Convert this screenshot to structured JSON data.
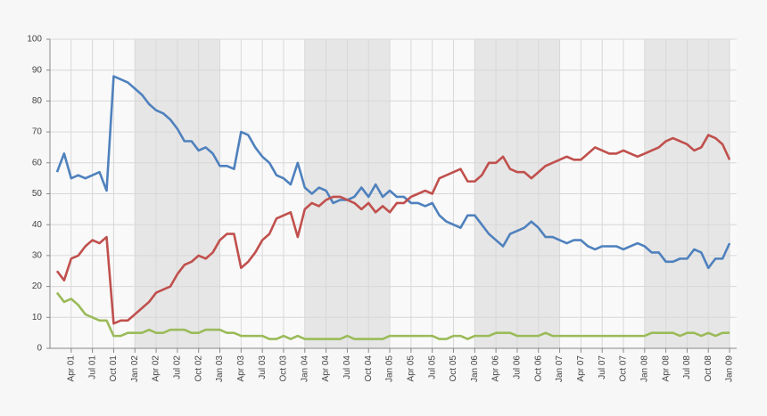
{
  "chart_data": {
    "type": "line",
    "x": [
      "2001-02",
      "2001-03",
      "2001-04",
      "2001-05",
      "2001-06",
      "2001-07",
      "2001-08",
      "2001-09",
      "2001-10",
      "2001-11",
      "2001-12",
      "2002-01",
      "2002-02",
      "2002-03",
      "2002-04",
      "2002-05",
      "2002-06",
      "2002-07",
      "2002-08",
      "2002-09",
      "2002-10",
      "2002-11",
      "2002-12",
      "2003-01",
      "2003-02",
      "2003-03",
      "2003-04",
      "2003-05",
      "2003-06",
      "2003-07",
      "2003-08",
      "2003-09",
      "2003-10",
      "2003-11",
      "2003-12",
      "2004-01",
      "2004-02",
      "2004-03",
      "2004-04",
      "2004-05",
      "2004-06",
      "2004-07",
      "2004-08",
      "2004-09",
      "2004-10",
      "2004-11",
      "2004-12",
      "2005-01",
      "2005-02",
      "2005-03",
      "2005-04",
      "2005-05",
      "2005-06",
      "2005-07",
      "2005-08",
      "2005-09",
      "2005-10",
      "2005-11",
      "2005-12",
      "2006-01",
      "2006-02",
      "2006-03",
      "2006-04",
      "2006-05",
      "2006-06",
      "2006-07",
      "2006-08",
      "2006-09",
      "2006-10",
      "2006-11",
      "2006-12",
      "2007-01",
      "2007-02",
      "2007-03",
      "2007-04",
      "2007-05",
      "2007-06",
      "2007-07",
      "2007-08",
      "2007-09",
      "2007-10",
      "2007-11",
      "2007-12",
      "2008-01",
      "2008-02",
      "2008-03",
      "2008-04",
      "2008-05",
      "2008-06",
      "2008-07",
      "2008-08",
      "2008-09",
      "2008-10",
      "2008-11",
      "2008-12",
      "2009-01"
    ],
    "series": [
      {
        "color": "#4f81bd",
        "values": [
          57,
          63,
          55,
          56,
          55,
          56,
          57,
          51,
          88,
          87,
          86,
          84,
          82,
          79,
          77,
          76,
          74,
          71,
          67,
          67,
          64,
          65,
          63,
          59,
          59,
          58,
          70,
          69,
          65,
          62,
          60,
          56,
          55,
          53,
          60,
          52,
          50,
          52,
          51,
          47,
          48,
          48,
          49,
          52,
          49,
          53,
          49,
          51,
          49,
          49,
          47,
          47,
          46,
          47,
          43,
          41,
          40,
          39,
          43,
          43,
          40,
          37,
          35,
          33,
          37,
          38,
          39,
          41,
          39,
          36,
          36,
          35,
          34,
          35,
          35,
          33,
          32,
          33,
          33,
          33,
          32,
          33,
          34,
          33,
          31,
          31,
          28,
          28,
          29,
          29,
          32,
          31,
          26,
          29,
          29,
          34
        ]
      },
      {
        "color": "#c0504d",
        "values": [
          25,
          22,
          29,
          30,
          33,
          35,
          34,
          36,
          8,
          9,
          9,
          11,
          13,
          15,
          18,
          19,
          20,
          24,
          27,
          28,
          30,
          29,
          31,
          35,
          37,
          37,
          26,
          28,
          31,
          35,
          37,
          42,
          43,
          44,
          36,
          45,
          47,
          46,
          48,
          49,
          49,
          48,
          47,
          45,
          47,
          44,
          46,
          44,
          47,
          47,
          49,
          50,
          51,
          50,
          55,
          56,
          57,
          58,
          54,
          54,
          56,
          60,
          60,
          62,
          58,
          57,
          57,
          55,
          57,
          59,
          60,
          61,
          62,
          61,
          61,
          63,
          65,
          64,
          63,
          63,
          64,
          63,
          62,
          63,
          64,
          65,
          67,
          68,
          67,
          66,
          64,
          65,
          69,
          68,
          66,
          61
        ]
      },
      {
        "color": "#9bbb59",
        "values": [
          18,
          15,
          16,
          14,
          11,
          10,
          9,
          9,
          4,
          4,
          5,
          5,
          5,
          6,
          5,
          5,
          6,
          6,
          6,
          5,
          5,
          6,
          6,
          6,
          5,
          5,
          4,
          4,
          4,
          4,
          3,
          3,
          4,
          3,
          4,
          3,
          3,
          3,
          3,
          3,
          3,
          4,
          3,
          3,
          3,
          3,
          3,
          4,
          4,
          4,
          4,
          4,
          4,
          4,
          3,
          3,
          4,
          4,
          3,
          4,
          4,
          4,
          5,
          5,
          5,
          4,
          4,
          4,
          4,
          5,
          4,
          4,
          4,
          4,
          4,
          4,
          4,
          4,
          4,
          4,
          4,
          4,
          4,
          4,
          5,
          5,
          5,
          5,
          4,
          5,
          5,
          4,
          5,
          4,
          5,
          5
        ]
      }
    ],
    "xlim": [
      "2001-01",
      "2009-02"
    ],
    "xticks": [
      {
        "value": "2001-04",
        "label": "Apr 01"
      },
      {
        "value": "2001-07",
        "label": "Jul 01"
      },
      {
        "value": "2001-10",
        "label": "Oct 01"
      },
      {
        "value": "2002-01",
        "label": "Jan 02"
      },
      {
        "value": "2002-04",
        "label": "Apr 02"
      },
      {
        "value": "2002-07",
        "label": "Jul 02"
      },
      {
        "value": "2002-10",
        "label": "Oct 02"
      },
      {
        "value": "2003-01",
        "label": "Jan 03"
      },
      {
        "value": "2003-04",
        "label": "Apr 03"
      },
      {
        "value": "2003-07",
        "label": "Jul 03"
      },
      {
        "value": "2003-10",
        "label": "Oct 03"
      },
      {
        "value": "2004-01",
        "label": "Jan 04"
      },
      {
        "value": "2004-04",
        "label": "Apr 04"
      },
      {
        "value": "2004-07",
        "label": "Jul 04"
      },
      {
        "value": "2004-10",
        "label": "Oct 04"
      },
      {
        "value": "2005-01",
        "label": "Jan 05"
      },
      {
        "value": "2005-04",
        "label": "Apr 05"
      },
      {
        "value": "2005-07",
        "label": "Jul 05"
      },
      {
        "value": "2005-10",
        "label": "Oct 05"
      },
      {
        "value": "2006-01",
        "label": "Jan 06"
      },
      {
        "value": "2006-04",
        "label": "Apr 06"
      },
      {
        "value": "2006-07",
        "label": "Jul 06"
      },
      {
        "value": "2006-10",
        "label": "Oct 06"
      },
      {
        "value": "2007-01",
        "label": "Jan 07"
      },
      {
        "value": "2007-04",
        "label": "Apr 07"
      },
      {
        "value": "2007-07",
        "label": "Jul 07"
      },
      {
        "value": "2007-10",
        "label": "Oct 07"
      },
      {
        "value": "2008-01",
        "label": "Jan 08"
      },
      {
        "value": "2008-04",
        "label": "Apr 08"
      },
      {
        "value": "2008-07",
        "label": "Jul 08"
      },
      {
        "value": "2008-10",
        "label": "Oct 08"
      },
      {
        "value": "2009-01",
        "label": "Jan 09"
      }
    ],
    "ylim": [
      0,
      100
    ],
    "yticks": [
      0,
      10,
      20,
      30,
      40,
      50,
      60,
      70,
      80,
      90,
      100
    ],
    "grid": true
  }
}
